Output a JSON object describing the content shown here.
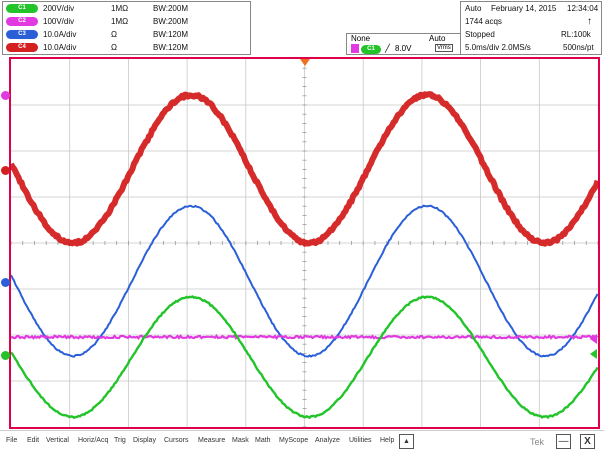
{
  "channels": [
    {
      "badge": "C1",
      "scale": "200V/div",
      "impedance": "1MΩ",
      "bandwidth": "BW:200M",
      "color": "#22c42a"
    },
    {
      "badge": "C2",
      "scale": "100V/div",
      "impedance": "1MΩ",
      "bandwidth": "BW:200M",
      "color": "#e03ae0"
    },
    {
      "badge": "C3",
      "scale": "10.0A/div",
      "impedance": "Ω",
      "bandwidth": "BW:120M",
      "color": "#2a5fd8"
    },
    {
      "badge": "C4",
      "scale": "10.0A/div",
      "impedance": "Ω",
      "bandwidth": "BW:120M",
      "color": "#d42020"
    }
  ],
  "trigger": {
    "mode": "None",
    "source_badge": "C1",
    "level": "8.0V",
    "sweep": "Auto",
    "extra": "Vrms"
  },
  "acquisition": {
    "state": "Auto",
    "date": "February 14, 2015",
    "time": "12:34:04",
    "acqs": "1744 acqs",
    "status": "Stopped",
    "record": "RL:100k",
    "timebase": "5.0ms/div 2.0MS/s",
    "sample": "500ns/pt"
  },
  "menu": {
    "items": [
      "File",
      "Edit",
      "Vertical",
      "Horiz/Acq",
      "Trig",
      "Display",
      "Cursors",
      "Measure",
      "Mask",
      "Math",
      "MyScope",
      "Analyze",
      "Utilities",
      "Help"
    ],
    "tek": "Tek",
    "arrow": "▲",
    "minimize": "—",
    "close": "X"
  },
  "colors": {
    "border": "#e0004a",
    "grid": "#c8c8c8",
    "green": "#22c42a",
    "blue": "#2a5fd8",
    "red": "#d42020",
    "magenta": "#e03ae0"
  }
}
